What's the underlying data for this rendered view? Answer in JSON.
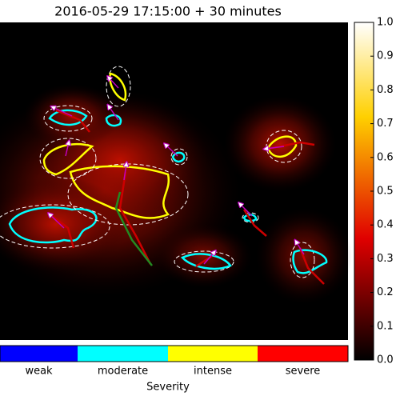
{
  "chart_data": {
    "type": "heatmap",
    "title": "2016-05-29 17:15:00 + 30 minutes",
    "colorbar_lim": [
      0,
      1
    ],
    "colorbar_ticks": [
      {
        "value": 0,
        "label": "0.0"
      },
      0.1,
      0.2,
      0.3,
      0.4,
      0.5,
      0.6,
      0.7,
      0.8,
      0.9,
      {
        "value": 1,
        "label": "1.0"
      }
    ],
    "legend": {
      "title": "Severity",
      "categories": [
        "weak",
        "moderate",
        "intense",
        "severe"
      ],
      "colors": [
        "#0000ff",
        "#00ffff",
        "#ffff00",
        "#ff0000"
      ]
    }
  }
}
